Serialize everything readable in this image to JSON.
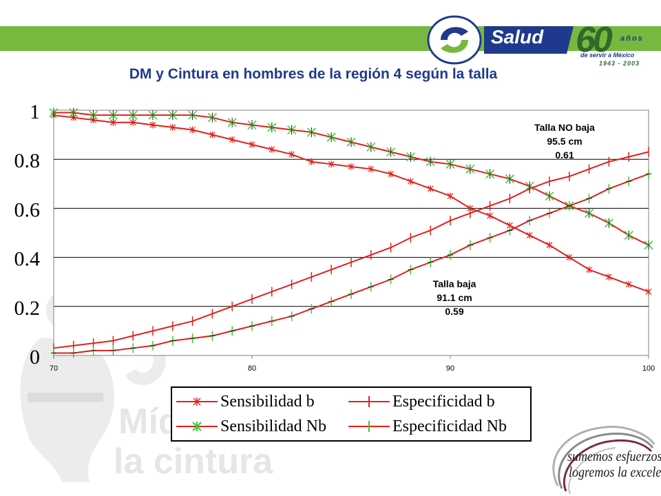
{
  "header": {
    "title": "DM y Cintura en hombres de la región 4 según la talla",
    "logo": {
      "brand": "Salud",
      "anniversary": "60",
      "anos": "años",
      "tagline": "de servir a México",
      "years": "1943 - 2003"
    }
  },
  "watermark": {
    "line1": "Mídete",
    "line2": "la cintura"
  },
  "slogan": {
    "line1": "sumemos esfuerzos,",
    "line2": "logremos la excelencia..."
  },
  "colors": {
    "band": "#77b83f",
    "title": "#1f3a8c",
    "red": "#e0201c",
    "green": "#33cc33",
    "black": "#000000"
  },
  "chart_data": {
    "type": "line",
    "title": "DM y Cintura en hombres de la región 4 según la talla",
    "xlabel": "",
    "ylabel": "",
    "xlim": [
      70,
      100
    ],
    "ylim": [
      0,
      1
    ],
    "grid": "horizontal",
    "x_ticks": [
      70,
      80,
      90,
      100
    ],
    "y_ticks": [
      0,
      0.2,
      0.4,
      0.6,
      0.8,
      1
    ],
    "y_tick_labels": [
      "0",
      "0.2",
      "0.4",
      "0.6",
      "0.8",
      "1"
    ],
    "x": [
      70,
      71,
      72,
      73,
      74,
      75,
      76,
      77,
      78,
      79,
      80,
      81,
      82,
      83,
      84,
      85,
      86,
      87,
      88,
      89,
      90,
      91,
      92,
      93,
      94,
      95,
      96,
      97,
      98,
      99,
      100
    ],
    "series": [
      {
        "name": "Sensibilidad b",
        "style": "star",
        "values": [
          0.98,
          0.97,
          0.96,
          0.95,
          0.95,
          0.94,
          0.93,
          0.92,
          0.9,
          0.88,
          0.86,
          0.84,
          0.82,
          0.79,
          0.78,
          0.77,
          0.76,
          0.74,
          0.71,
          0.68,
          0.65,
          0.6,
          0.57,
          0.53,
          0.49,
          0.45,
          0.4,
          0.35,
          0.32,
          0.29,
          0.26
        ]
      },
      {
        "name": "Especificidad b",
        "style": "plus",
        "values": [
          0.03,
          0.04,
          0.05,
          0.06,
          0.08,
          0.1,
          0.12,
          0.14,
          0.17,
          0.2,
          0.23,
          0.26,
          0.29,
          0.32,
          0.35,
          0.38,
          0.41,
          0.44,
          0.48,
          0.51,
          0.55,
          0.58,
          0.61,
          0.64,
          0.68,
          0.71,
          0.73,
          0.76,
          0.79,
          0.81,
          0.83
        ]
      },
      {
        "name": "Sensibilidad Nb",
        "style": "starplus",
        "values": [
          0.99,
          0.99,
          0.98,
          0.98,
          0.98,
          0.98,
          0.98,
          0.98,
          0.97,
          0.95,
          0.94,
          0.93,
          0.92,
          0.91,
          0.89,
          0.87,
          0.85,
          0.83,
          0.81,
          0.79,
          0.78,
          0.76,
          0.74,
          0.72,
          0.69,
          0.65,
          0.61,
          0.58,
          0.54,
          0.49,
          0.45
        ]
      },
      {
        "name": "Especificidad Nb",
        "style": "plus-green",
        "values": [
          0.01,
          0.01,
          0.02,
          0.02,
          0.03,
          0.04,
          0.06,
          0.07,
          0.08,
          0.1,
          0.12,
          0.14,
          0.16,
          0.19,
          0.22,
          0.25,
          0.28,
          0.31,
          0.35,
          0.38,
          0.41,
          0.45,
          0.48,
          0.51,
          0.55,
          0.58,
          0.61,
          0.64,
          0.68,
          0.71,
          0.74
        ]
      }
    ],
    "annotations": [
      {
        "line1": "Talla NO baja",
        "line2": "95.5 cm",
        "line3": "0.61"
      },
      {
        "line1": "Talla baja",
        "line2": "91.1 cm",
        "line3": "0.59"
      }
    ]
  }
}
